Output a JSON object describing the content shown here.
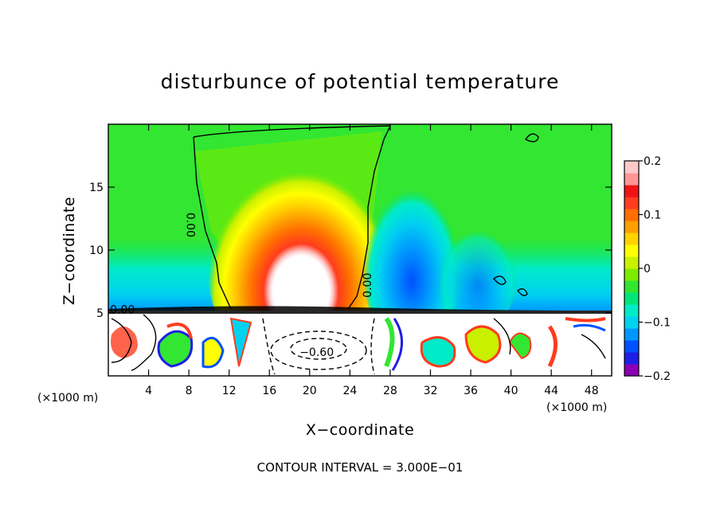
{
  "chart_data": {
    "type": "heatmap",
    "title": "disturbunce of potential temperature",
    "xlabel": "X−coordinate",
    "ylabel": "Z−coordinate",
    "x_unit": "(×1000 m)",
    "z_unit": "(×1000 m)",
    "xlim": [
      0,
      50
    ],
    "zlim": [
      0,
      20
    ],
    "x_ticks": [
      4,
      8,
      12,
      16,
      20,
      24,
      28,
      32,
      36,
      40,
      44,
      48
    ],
    "x_tick_labels": [
      "4",
      "8",
      "12",
      "16",
      "20",
      "24",
      "28",
      "32",
      "36",
      "40",
      "44",
      "48"
    ],
    "z_ticks": [
      5,
      10,
      15
    ],
    "z_tick_labels": [
      "5",
      "10",
      "15"
    ],
    "colorbar": {
      "range": [
        -0.2,
        0.2
      ],
      "ticks": [
        0.2,
        0.1,
        0,
        -0.1,
        -0.2
      ],
      "tick_labels": [
        "0.2",
        "0.1",
        "0",
        "−0.1",
        "−0.2"
      ],
      "colors": [
        "#8c00b4",
        "#1e1ee6",
        "#0050ff",
        "#0096ff",
        "#00d2f0",
        "#00ebc8",
        "#00e678",
        "#32e632",
        "#7deb00",
        "#c8f000",
        "#ffff00",
        "#ffd200",
        "#ffa000",
        "#ff6e00",
        "#ff3c1e",
        "#f01414",
        "#ff9696",
        "#ffc8c8"
      ]
    },
    "contour_labels": [
      {
        "text": "0.00",
        "x": 8.2,
        "z": 12.0,
        "rotate": 90
      },
      {
        "text": "0.00",
        "x": 25.7,
        "z": 7.2,
        "rotate": -90
      },
      {
        "text": "0.00",
        "x": 1.4,
        "z": 5.3,
        "rotate": 0
      },
      {
        "text": "−0.60",
        "x": 20.7,
        "z": 1.9,
        "rotate": 0
      }
    ],
    "annotation": "CONTOUR INTERVAL = 3.000E−01"
  }
}
